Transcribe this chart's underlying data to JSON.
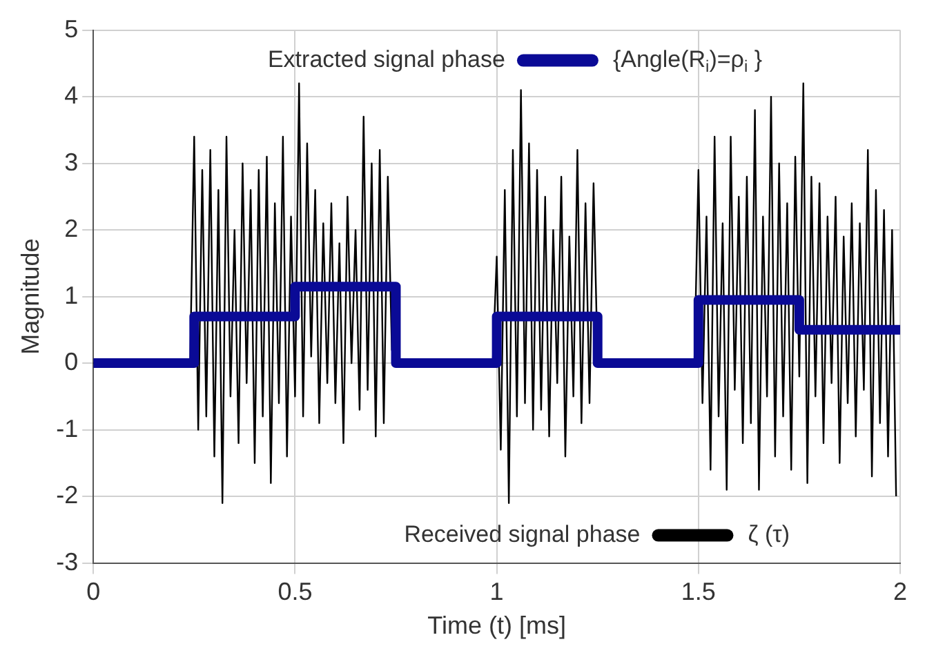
{
  "chart_data": {
    "type": "line",
    "xlabel": "Time (t) [ms]",
    "ylabel": "Magnitude",
    "xlim": [
      0,
      2
    ],
    "xticks": [
      0,
      0.5,
      1,
      1.5,
      2
    ],
    "ylim": [
      -3,
      5
    ],
    "yticks": [
      -3,
      -2,
      -1,
      0,
      1,
      2,
      3,
      4,
      5
    ],
    "grid": true,
    "legend": "right",
    "marker": "none",
    "line_style": "solid",
    "annotations": [
      "Extracted signal phase",
      "Received signal phase"
    ],
    "series": [
      {
        "name": "{Angle(R$_{i}$)=ρ$_{i}$ }",
        "type": "step",
        "color": "#0a0a96",
        "x": [
          0,
          0.25,
          0.5,
          0.75,
          1,
          1.25,
          1.5,
          1.75,
          2
        ],
        "values": [
          0,
          0.7,
          1.15,
          0,
          0.7,
          0,
          0.95,
          0.5,
          0.5
        ]
      },
      {
        "name": "ζ (τ)",
        "color": "#000000",
        "x": [
          0,
          0.24,
          0.25,
          0.26,
          0.27,
          0.28,
          0.29,
          0.3,
          0.31,
          0.32,
          0.33,
          0.34,
          0.35,
          0.36,
          0.37,
          0.38,
          0.39,
          0.4,
          0.41,
          0.42,
          0.43,
          0.44,
          0.45,
          0.46,
          0.47,
          0.48,
          0.49,
          0.5,
          0.51,
          0.52,
          0.53,
          0.54,
          0.55,
          0.56,
          0.57,
          0.58,
          0.59,
          0.6,
          0.61,
          0.62,
          0.63,
          0.64,
          0.65,
          0.66,
          0.67,
          0.68,
          0.69,
          0.7,
          0.71,
          0.72,
          0.73,
          0.74,
          0.75,
          0.99,
          1.0,
          1.01,
          1.02,
          1.03,
          1.04,
          1.05,
          1.06,
          1.07,
          1.08,
          1.09,
          1.1,
          1.11,
          1.12,
          1.13,
          1.14,
          1.15,
          1.16,
          1.17,
          1.18,
          1.19,
          1.2,
          1.21,
          1.22,
          1.23,
          1.24,
          1.25,
          1.49,
          1.5,
          1.51,
          1.52,
          1.53,
          1.54,
          1.55,
          1.56,
          1.57,
          1.58,
          1.59,
          1.6,
          1.61,
          1.62,
          1.63,
          1.64,
          1.65,
          1.66,
          1.67,
          1.68,
          1.69,
          1.7,
          1.71,
          1.72,
          1.73,
          1.74,
          1.75,
          1.76,
          1.77,
          1.78,
          1.79,
          1.8,
          1.81,
          1.82,
          1.83,
          1.84,
          1.85,
          1.86,
          1.87,
          1.88,
          1.89,
          1.9,
          1.91,
          1.92,
          1.93,
          1.94,
          1.95,
          1.96,
          1.97,
          1.98,
          1.99
        ],
        "values": [
          0,
          0,
          3.4,
          -1.0,
          2.9,
          -0.8,
          3.2,
          -1.4,
          2.6,
          -2.1,
          3.4,
          -0.5,
          2.0,
          -1.2,
          3.0,
          -0.3,
          2.6,
          -1.5,
          2.9,
          -0.8,
          3.1,
          -1.8,
          2.4,
          -0.6,
          3.4,
          -1.4,
          2.2,
          -0.5,
          4.2,
          -0.8,
          3.3,
          0.1,
          2.6,
          -0.9,
          2.1,
          -0.3,
          2.4,
          -0.6,
          1.8,
          -1.2,
          2.5,
          0.0,
          2.0,
          -0.7,
          3.7,
          -0.4,
          3.0,
          -1.1,
          3.2,
          -0.9,
          2.8,
          0.2,
          0,
          0,
          1.6,
          -1.3,
          2.6,
          -2.1,
          3.2,
          -0.8,
          4.1,
          -0.6,
          3.3,
          -1.0,
          2.9,
          -0.7,
          2.5,
          -1.1,
          2.0,
          -0.3,
          2.8,
          -1.4,
          1.9,
          -0.5,
          3.2,
          -0.9,
          2.4,
          -0.6,
          2.7,
          0,
          0,
          2.9,
          -0.6,
          2.2,
          -1.6,
          3.4,
          -0.8,
          2.1,
          -1.9,
          3.4,
          -0.4,
          2.5,
          -1.2,
          2.8,
          -0.9,
          3.8,
          -1.9,
          2.2,
          -0.5,
          4.0,
          -1.4,
          3.0,
          -0.8,
          2.4,
          -1.6,
          3.1,
          -0.2,
          4.2,
          -1.8,
          2.8,
          -0.5,
          2.7,
          -1.2,
          2.2,
          -0.3,
          2.5,
          -1.5,
          1.9,
          -0.6,
          2.4,
          -1.1,
          2.1,
          -0.4,
          3.2,
          -1.7,
          2.6,
          -0.9,
          2.3,
          -1.4,
          2.0,
          -2.0
        ]
      }
    ]
  }
}
